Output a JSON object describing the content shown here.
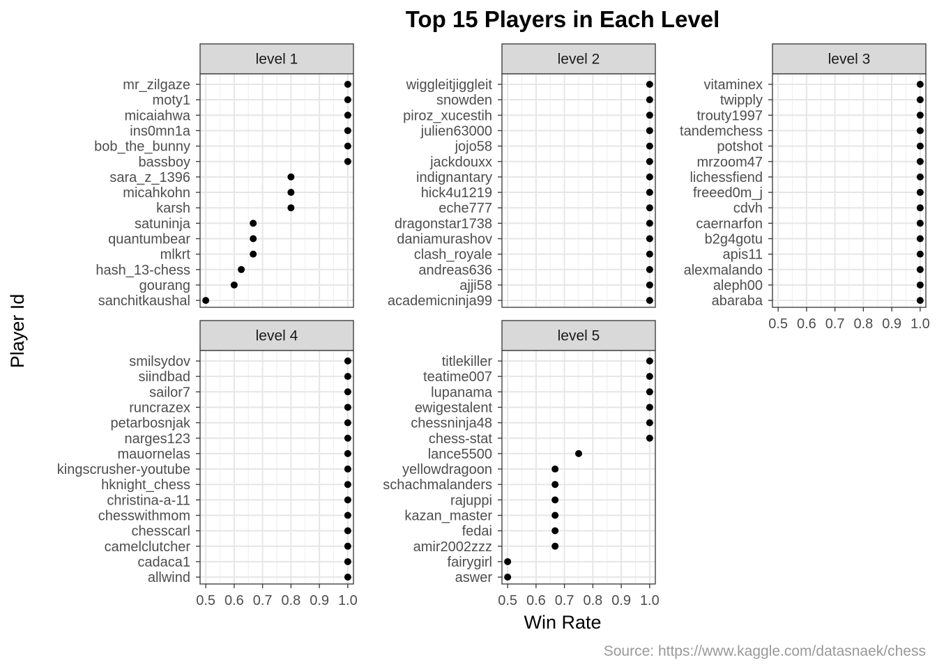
{
  "chart_data": {
    "type": "scatter",
    "title": "Top 15 Players in Each Level",
    "xlabel": "Win Rate",
    "ylabel": "Player Id",
    "caption": "Source: https://www.kaggle.com/datasnaek/chess",
    "xlim": [
      0.48,
      1.02
    ],
    "x_ticks": [
      0.5,
      0.6,
      0.7,
      0.8,
      0.9,
      1.0
    ],
    "x_tick_labels": [
      "0.5",
      "0.6",
      "0.7",
      "0.8",
      "0.9",
      "1.0"
    ],
    "grid": true,
    "panels": [
      {
        "name": "level 1",
        "players": [
          "mr_zilgaze",
          "moty1",
          "micaiahwa",
          "ins0mn1a",
          "bob_the_bunny",
          "bassboy",
          "sara_z_1396",
          "micahkohn",
          "karsh",
          "satuninja",
          "quantumbear",
          "mlkrt",
          "hash_13-chess",
          "gourang",
          "sanchitkaushal"
        ],
        "values": [
          1.0,
          1.0,
          1.0,
          1.0,
          1.0,
          1.0,
          0.8,
          0.8,
          0.8,
          0.667,
          0.667,
          0.667,
          0.625,
          0.6,
          0.5
        ]
      },
      {
        "name": "level 2",
        "players": [
          "wiggleitjiggleit",
          "snowden",
          "piroz_xucestih",
          "julien63000",
          "jojo58",
          "jackdouxx",
          "indignantary",
          "hick4u1219",
          "eche777",
          "dragonstar1738",
          "daniamurashov",
          "clash_royale",
          "andreas636",
          "ajji58",
          "academicninja99"
        ],
        "values": [
          1.0,
          1.0,
          1.0,
          1.0,
          1.0,
          1.0,
          1.0,
          1.0,
          1.0,
          1.0,
          1.0,
          1.0,
          1.0,
          1.0,
          1.0
        ]
      },
      {
        "name": "level 3",
        "players": [
          "vitaminex",
          "twipply",
          "trouty1997",
          "tandemchess",
          "potshot",
          "mrzoom47",
          "lichessfiend",
          "freeed0m_j",
          "cdvh",
          "caernarfon",
          "b2g4gotu",
          "apis11",
          "alexmalando",
          "aleph00",
          "abaraba"
        ],
        "values": [
          1.0,
          1.0,
          1.0,
          1.0,
          1.0,
          1.0,
          1.0,
          1.0,
          1.0,
          1.0,
          1.0,
          1.0,
          1.0,
          1.0,
          1.0
        ]
      },
      {
        "name": "level 4",
        "players": [
          "smilsydov",
          "siindbad",
          "sailor7",
          "runcrazex",
          "petarbosnjak",
          "narges123",
          "mauornelas",
          "kingscrusher-youtube",
          "hknight_chess",
          "christina-a-11",
          "chesswithmom",
          "chesscarl",
          "camelclutcher",
          "cadaca1",
          "allwind"
        ],
        "values": [
          1.0,
          1.0,
          1.0,
          1.0,
          1.0,
          1.0,
          1.0,
          1.0,
          1.0,
          1.0,
          1.0,
          1.0,
          1.0,
          1.0,
          1.0
        ]
      },
      {
        "name": "level 5",
        "players": [
          "titlekiller",
          "teatime007",
          "lupanama",
          "ewigestalent",
          "chessninja48",
          "chess-stat",
          "lance5500",
          "yellowdragoon",
          "schachmalanders",
          "rajuppi",
          "kazan_master",
          "fedai",
          "amir2002zzz",
          "fairygirl",
          "aswer"
        ],
        "values": [
          1.0,
          1.0,
          1.0,
          1.0,
          1.0,
          1.0,
          0.75,
          0.667,
          0.667,
          0.667,
          0.667,
          0.667,
          0.667,
          0.5,
          0.5
        ]
      }
    ]
  }
}
